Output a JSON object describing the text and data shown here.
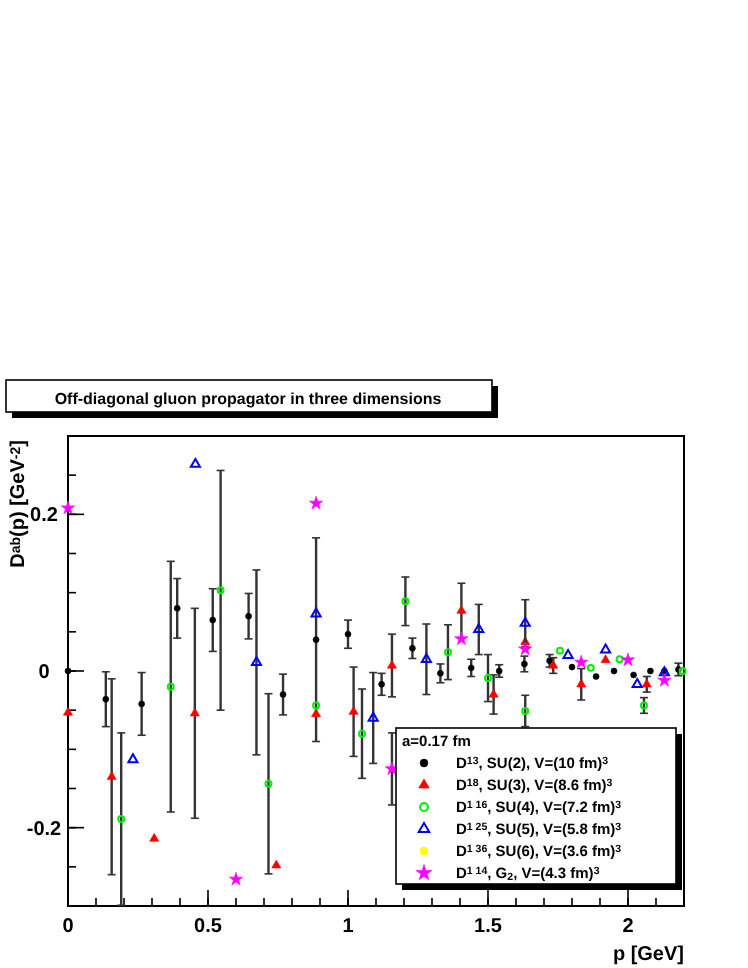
{
  "chart_data": {
    "type": "scatter",
    "title": "Off-diagonal gluon propagator in three dimensions",
    "xlabel": "p [GeV]",
    "ylabel": "D$^{ab}$(p) [GeV$^{-2}$]",
    "legend_title": "a=0.17 fm",
    "legend": "bottom right",
    "grid": false,
    "xlim": [
      0,
      2.2
    ],
    "xticks": [
      0,
      0.5,
      1,
      1.5,
      2
    ],
    "ylim": [
      -0.3,
      0.3
    ],
    "yticks": [
      -0.2,
      0,
      0.2
    ],
    "series": [
      {
        "name": "D$^{13}$, SU(2), V=(10 fm)$^{3}$",
        "color": "#000000",
        "marker": "circle",
        "x": [
          0,
          0.135,
          0.263,
          0.39,
          0.517,
          0.645,
          0.768,
          0.886,
          1.0,
          1.12,
          1.23,
          1.33,
          1.44,
          1.54,
          1.63,
          1.72,
          1.8,
          1.886,
          1.95,
          2.02,
          2.08,
          2.13,
          2.18
        ],
        "values": [
          0,
          -0.036,
          -0.042,
          0.08,
          0.065,
          0.07,
          -0.03,
          0.04,
          0.047,
          -0.017,
          0.029,
          -0.003,
          0.004,
          0,
          0.009,
          0.013,
          0.005,
          -0.007,
          0,
          -0.005,
          0,
          0,
          0.002
        ],
        "errors": [
          null,
          0.035,
          0.04,
          0.038,
          0.04,
          0.029,
          0.026,
          0.13,
          0.018,
          0.014,
          0.013,
          0.012,
          0.011,
          0.008,
          0.01,
          0.008,
          null,
          null,
          null,
          null,
          null,
          null,
          0.008
        ]
      },
      {
        "name": "D$^{18}$, SU(3), V=(8.6 fm)$^{3}$",
        "color": "#ff0000",
        "marker": "triangle",
        "x": [
          0,
          0.156,
          0.308,
          0.453,
          0.744,
          0.886,
          1.02,
          1.157,
          1.405,
          1.52,
          1.633,
          1.733,
          1.833,
          1.92,
          2.067
        ],
        "values": [
          -0.053,
          -0.135,
          -0.214,
          -0.054,
          -0.248,
          -0.055,
          -0.052,
          0.007,
          0.077,
          -0.03,
          0.037,
          0.007,
          -0.017,
          0.014,
          -0.017
        ],
        "errors": [
          null,
          0.125,
          null,
          0.134,
          null,
          null,
          0.057,
          0.04,
          0.035,
          0.025,
          null,
          0.01,
          0.02,
          null,
          0.01
        ]
      },
      {
        "name": "D$^{1 16}$, SU(4), V=(7.2 fm)$^{3}$",
        "color": "#00ee00",
        "marker": "circle-open",
        "x": [
          0.19,
          0.367,
          0.545,
          0.716,
          0.886,
          1.05,
          1.205,
          1.357,
          1.5,
          1.633,
          1.757,
          1.867,
          1.97,
          2.057,
          2.195
        ],
        "values": [
          -0.189,
          -0.02,
          0.103,
          -0.144,
          -0.044,
          -0.08,
          0.089,
          0.024,
          -0.009,
          -0.051,
          0.026,
          0.004,
          0.015,
          -0.044,
          0
        ],
        "errors": [
          0.11,
          0.16,
          0.153,
          0.115,
          null,
          0.057,
          0.031,
          0.035,
          0.03,
          0.02,
          null,
          null,
          null,
          0.01,
          null
        ]
      },
      {
        "name": "D$^{1 25}$, SU(5), V=(5.8 fm)$^{3}$",
        "color": "#0000ff",
        "marker": "triangle-open",
        "x": [
          0.232,
          0.455,
          0.673,
          0.886,
          1.09,
          1.28,
          1.467,
          1.633,
          1.786,
          1.92,
          2.033,
          2.13
        ],
        "values": [
          -0.113,
          0.264,
          0.011,
          0.073,
          -0.06,
          0.015,
          0.053,
          0.061,
          0.02,
          0.027,
          -0.017,
          -0.002
        ],
        "errors": [
          null,
          null,
          0.118,
          null,
          0.058,
          0.045,
          0.032,
          0.03,
          null,
          null,
          null,
          null
        ]
      },
      {
        "name": "D$^{1 36}$, SU(6), V=(3.6 fm)$^{3}$",
        "color": "#ffff00",
        "marker": "circle"
      },
      {
        "name": "D$^{1 14}$, G$_{2}$, V=(4.3 fm)$^{3}$",
        "color": "#ff00ff",
        "marker": "star",
        "x": [
          0,
          0.6,
          0.886,
          1.157,
          1.405,
          1.633,
          1.833,
          2.0,
          2.13
        ],
        "values": [
          0.208,
          -0.266,
          0.214,
          -0.125,
          0.041,
          0.028,
          0.011,
          0.014,
          -0.012
        ],
        "errors": [
          null,
          null,
          null,
          0.046,
          null,
          null,
          null,
          null,
          null
        ]
      }
    ]
  }
}
